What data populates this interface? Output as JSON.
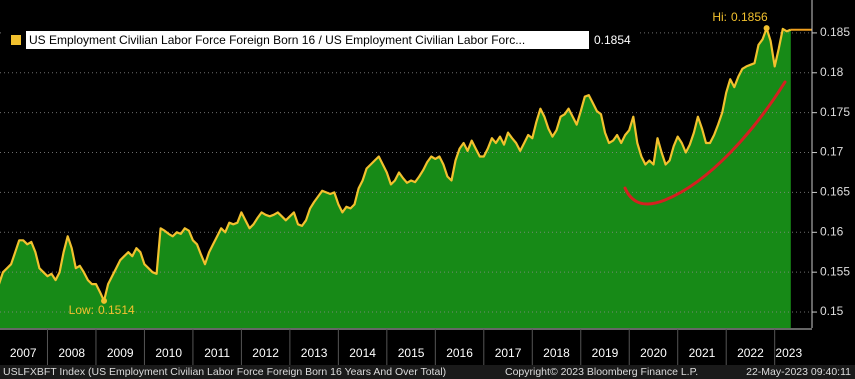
{
  "chart_data": {
    "type": "area",
    "legend_text": "US Employment Civilian Labor Force Foreign Born 16 / US Employment Civilian Labor Forc...",
    "annotations": {
      "high_label": "Hi:",
      "low_label": "Low:"
    },
    "categories": [
      "2007",
      null,
      null,
      null,
      null,
      null,
      null,
      null,
      null,
      null,
      null,
      null,
      "2008",
      null,
      null,
      null,
      null,
      null,
      null,
      null,
      null,
      null,
      null,
      null,
      "2009",
      null,
      null,
      null,
      null,
      null,
      null,
      null,
      null,
      null,
      null,
      null,
      "2010",
      null,
      null,
      null,
      null,
      null,
      null,
      null,
      null,
      null,
      null,
      null,
      "2011",
      null,
      null,
      null,
      null,
      null,
      null,
      null,
      null,
      null,
      null,
      null,
      "2012",
      null,
      null,
      null,
      null,
      null,
      null,
      null,
      null,
      null,
      null,
      null,
      "2013",
      null,
      null,
      null,
      null,
      null,
      null,
      null,
      null,
      null,
      null,
      null,
      "2014",
      null,
      null,
      null,
      null,
      null,
      null,
      null,
      null,
      null,
      null,
      null,
      "2015",
      null,
      null,
      null,
      null,
      null,
      null,
      null,
      null,
      null,
      null,
      null,
      "2016",
      null,
      null,
      null,
      null,
      null,
      null,
      null,
      null,
      null,
      null,
      null,
      "2017",
      null,
      null,
      null,
      null,
      null,
      null,
      null,
      null,
      null,
      null,
      null,
      "2018",
      null,
      null,
      null,
      null,
      null,
      null,
      null,
      null,
      null,
      null,
      null,
      "2019",
      null,
      null,
      null,
      null,
      null,
      null,
      null,
      null,
      null,
      null,
      null,
      "2020",
      null,
      null,
      null,
      null,
      null,
      null,
      null,
      null,
      null,
      null,
      null,
      "2021",
      null,
      null,
      null,
      null,
      null,
      null,
      null,
      null,
      null,
      null,
      null,
      "2022",
      null,
      null,
      null,
      null,
      null,
      null,
      null,
      null,
      null,
      null,
      null,
      "2023",
      null,
      null,
      null,
      null
    ],
    "series": [
      {
        "name": "US Employment Civilian Labor Force Foreign Born 16 / US Employment Civilian Labor Force",
        "color": "#f2c12e",
        "fill": "#178a17",
        "values": [
          0.1535,
          0.155,
          0.1555,
          0.156,
          0.1575,
          0.159,
          0.159,
          0.1585,
          0.1588,
          0.1575,
          0.1555,
          0.155,
          0.1545,
          0.1548,
          0.154,
          0.155,
          0.1575,
          0.1595,
          0.158,
          0.1555,
          0.1558,
          0.155,
          0.154,
          0.1535,
          0.1535,
          0.1525,
          0.1514,
          0.1535,
          0.1545,
          0.1555,
          0.1565,
          0.157,
          0.1575,
          0.157,
          0.158,
          0.1575,
          0.156,
          0.1555,
          0.155,
          0.1548,
          0.1605,
          0.1602,
          0.1598,
          0.1595,
          0.16,
          0.1598,
          0.1605,
          0.1602,
          0.159,
          0.1585,
          0.1572,
          0.156,
          0.1575,
          0.1585,
          0.1595,
          0.1605,
          0.16,
          0.1612,
          0.161,
          0.1612,
          0.1625,
          0.1615,
          0.1605,
          0.161,
          0.1618,
          0.1625,
          0.1622,
          0.162,
          0.1622,
          0.1625,
          0.162,
          0.1615,
          0.162,
          0.1625,
          0.161,
          0.1608,
          0.1615,
          0.163,
          0.1638,
          0.1645,
          0.1652,
          0.165,
          0.1648,
          0.165,
          0.1635,
          0.1625,
          0.1632,
          0.163,
          0.1635,
          0.1655,
          0.1665,
          0.168,
          0.1685,
          0.169,
          0.1695,
          0.1685,
          0.1675,
          0.166,
          0.1665,
          0.1675,
          0.1668,
          0.1662,
          0.1665,
          0.1663,
          0.167,
          0.1678,
          0.1688,
          0.1695,
          0.1692,
          0.1695,
          0.1685,
          0.167,
          0.1665,
          0.169,
          0.1705,
          0.1712,
          0.1702,
          0.1715,
          0.1705,
          0.1695,
          0.1695,
          0.1705,
          0.1718,
          0.1712,
          0.172,
          0.171,
          0.1725,
          0.1718,
          0.1712,
          0.1702,
          0.1712,
          0.1722,
          0.1718,
          0.1738,
          0.1755,
          0.1745,
          0.173,
          0.172,
          0.1728,
          0.1745,
          0.1748,
          0.1755,
          0.1745,
          0.1735,
          0.1752,
          0.177,
          0.1772,
          0.1762,
          0.1752,
          0.1748,
          0.1725,
          0.1712,
          0.1715,
          0.1722,
          0.1712,
          0.1722,
          0.1728,
          0.1745,
          0.1712,
          0.1695,
          0.1685,
          0.169,
          0.1685,
          0.1718,
          0.17,
          0.1685,
          0.169,
          0.1708,
          0.172,
          0.1712,
          0.17,
          0.171,
          0.1725,
          0.1745,
          0.173,
          0.1712,
          0.1712,
          0.1722,
          0.1735,
          0.175,
          0.1775,
          0.1792,
          0.1782,
          0.1795,
          0.1805,
          0.1808,
          0.181,
          0.1812,
          0.1835,
          0.1842,
          0.1856,
          0.184,
          0.1808,
          0.183,
          0.1855,
          0.1852,
          0.1854
        ]
      }
    ],
    "ylim": [
      0.148,
      0.1885
    ],
    "yticks": [
      0.15,
      0.155,
      0.16,
      0.165,
      0.17,
      0.175,
      0.18,
      0.185
    ],
    "grid": true,
    "footer": {
      "ticker": "USLFXBFT Index (US Employment Civilian Labor Force Foreign Born 16 Years And Over Total)",
      "copyright": "Copyright© 2023 Bloomberg Finance L.P.",
      "timestamp": "22-May-2023 09:40:11"
    }
  }
}
